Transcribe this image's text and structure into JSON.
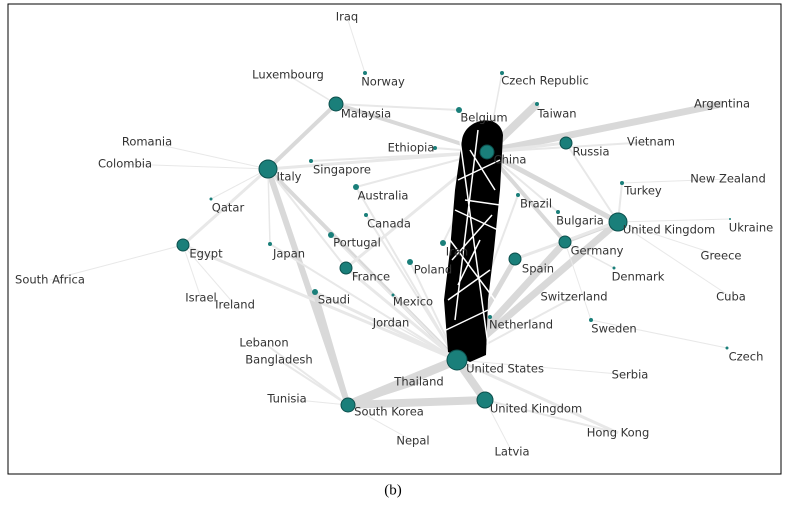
{
  "caption": "(b)",
  "nodes": [
    {
      "label": "Iraq"
    },
    {
      "label": "Luxembourg"
    },
    {
      "label": "Norway"
    },
    {
      "label": "Czech Republic"
    },
    {
      "label": "Malaysia"
    },
    {
      "label": "Belgium"
    },
    {
      "label": "Taiwan"
    },
    {
      "label": "Argentina"
    },
    {
      "label": "Romania"
    },
    {
      "label": "Colombia"
    },
    {
      "label": "Ethiopia"
    },
    {
      "label": "China"
    },
    {
      "label": "Russia"
    },
    {
      "label": "Vietnam"
    },
    {
      "label": "Singapore"
    },
    {
      "label": "Italy"
    },
    {
      "label": "Australia"
    },
    {
      "label": "Turkey"
    },
    {
      "label": "New Zealand"
    },
    {
      "label": "Qatar"
    },
    {
      "label": "Brazil"
    },
    {
      "label": "Canada"
    },
    {
      "label": "Bulgaria"
    },
    {
      "label": "United Kingdom"
    },
    {
      "label": "Ukraine"
    },
    {
      "label": "Portugal"
    },
    {
      "label": "Egypt"
    },
    {
      "label": "Japan"
    },
    {
      "label": "Iran"
    },
    {
      "label": "Germany"
    },
    {
      "label": "Greece"
    },
    {
      "label": "Spain"
    },
    {
      "label": "Poland"
    },
    {
      "label": "France"
    },
    {
      "label": "Denmark"
    },
    {
      "label": "South Africa"
    },
    {
      "label": "Saudi"
    },
    {
      "label": "Mexico"
    },
    {
      "label": "Switzerland"
    },
    {
      "label": "Israel"
    },
    {
      "label": "Cuba"
    },
    {
      "label": "Ireland"
    },
    {
      "label": "Netherland"
    },
    {
      "label": "Sweden"
    },
    {
      "label": "Jordan"
    },
    {
      "label": "Lebanon"
    },
    {
      "label": "Czech"
    },
    {
      "label": "Bangladesh"
    },
    {
      "label": "United States"
    },
    {
      "label": "Serbia"
    },
    {
      "label": "Thailand"
    },
    {
      "label": "Tunisia"
    },
    {
      "label": "United Kingdom"
    },
    {
      "label": "South Korea"
    },
    {
      "label": "Hong Kong"
    },
    {
      "label": "Nepal"
    },
    {
      "label": "Latvia"
    }
  ]
}
